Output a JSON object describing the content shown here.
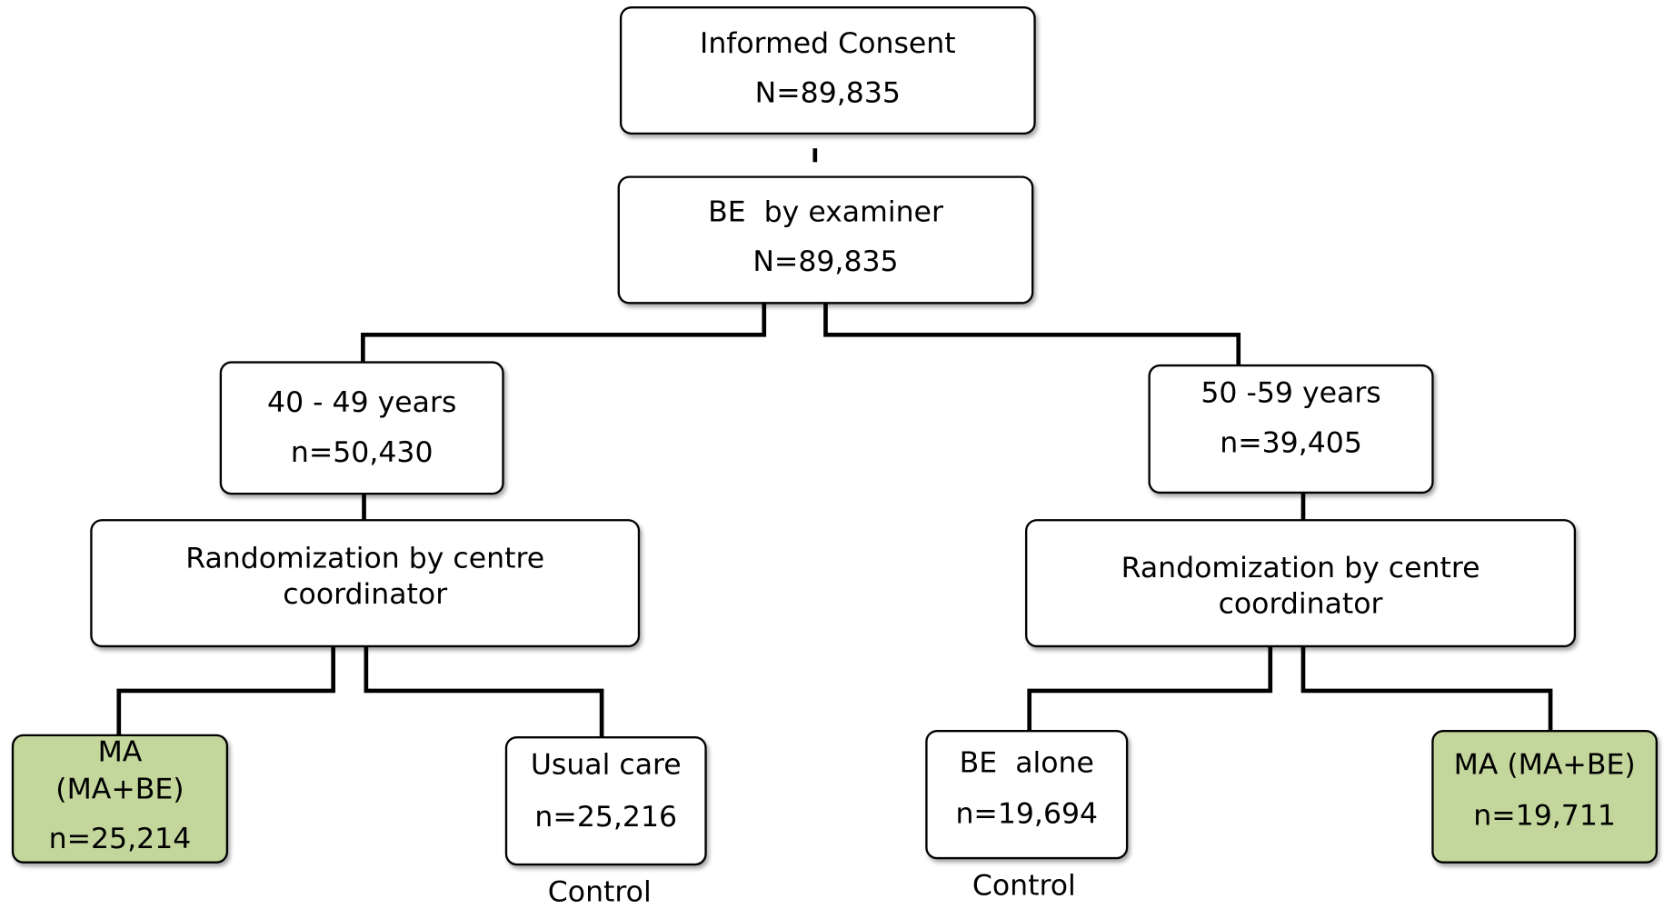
{
  "nodes": [
    {
      "lines": [
        "Informed Consent",
        "N=89,835"
      ]
    },
    {
      "lines": [
        "BE  by examiner",
        "N=89,835"
      ]
    },
    {
      "lines": [
        "40 - 49 years",
        "n=50,430"
      ]
    },
    {
      "lines": [
        "50 -59 years",
        "n=39,405"
      ]
    },
    {
      "lines": [
        "Randomization by centre",
        "coordinator"
      ]
    },
    {
      "lines": [
        "Randomization by centre",
        "coordinator"
      ]
    },
    {
      "lines": [
        "MA",
        "(MA+BE)",
        "n=25,214"
      ]
    },
    {
      "lines": [
        "Usual care",
        "n=25,216"
      ]
    },
    {
      "lines": [
        "BE  alone",
        "n=19,694"
      ]
    },
    {
      "lines": [
        "MA (MA+BE)",
        "n=19,711"
      ]
    }
  ],
  "notes": [
    "Control",
    "Control"
  ]
}
